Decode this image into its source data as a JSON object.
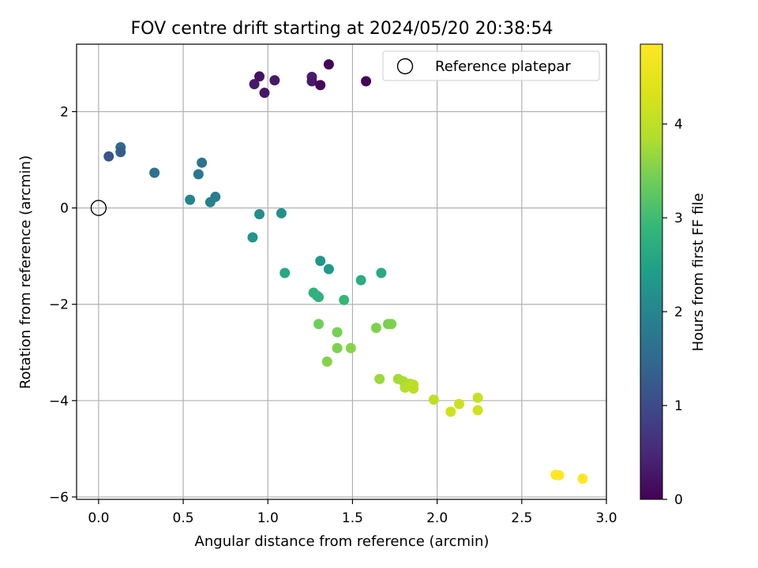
{
  "chart_data": {
    "type": "scatter",
    "title": "FOV centre drift starting at 2024/05/20 20:38:54",
    "xlabel": "Angular distance from reference (arcmin)",
    "ylabel": "Rotation from reference (arcmin)",
    "xlim": [
      -0.13,
      3.0
    ],
    "ylim": [
      -6.05,
      3.4
    ],
    "xticks": [
      0.0,
      0.5,
      1.0,
      1.5,
      2.0,
      2.5,
      3.0
    ],
    "xtick_labels": [
      "0.0",
      "0.5",
      "1.0",
      "1.5",
      "2.0",
      "2.5",
      "3.0"
    ],
    "yticks": [
      -6,
      -4,
      -2,
      0,
      2
    ],
    "ytick_labels": [
      "−6",
      "−4",
      "−2",
      "0",
      "2"
    ],
    "grid": true,
    "legend": {
      "label": "Reference platepar",
      "placement": "top-right"
    },
    "reference_point": {
      "x": 0.0,
      "y": 0.0
    },
    "colorbar": {
      "label": "Hours from first FF file",
      "colormap": "viridis",
      "range": [
        0,
        4.85
      ],
      "ticks": [
        0,
        1,
        2,
        3,
        4
      ],
      "tick_labels": [
        "0",
        "1",
        "2",
        "3",
        "4"
      ]
    },
    "points": [
      {
        "x": 1.36,
        "y": 2.98,
        "h": 0.05
      },
      {
        "x": 0.95,
        "y": 2.73,
        "h": 0.2
      },
      {
        "x": 0.92,
        "y": 2.57,
        "h": 0.3
      },
      {
        "x": 1.04,
        "y": 2.65,
        "h": 0.3
      },
      {
        "x": 0.98,
        "y": 2.39,
        "h": 0.25
      },
      {
        "x": 1.26,
        "y": 2.72,
        "h": 0.35
      },
      {
        "x": 1.26,
        "y": 2.63,
        "h": 0.3
      },
      {
        "x": 1.31,
        "y": 2.55,
        "h": 0.1
      },
      {
        "x": 1.58,
        "y": 2.63,
        "h": 0.05
      },
      {
        "x": 0.13,
        "y": 1.26,
        "h": 1.45
      },
      {
        "x": 0.13,
        "y": 1.16,
        "h": 1.3
      },
      {
        "x": 0.06,
        "y": 1.07,
        "h": 1.15
      },
      {
        "x": 0.33,
        "y": 0.73,
        "h": 1.65
      },
      {
        "x": 0.61,
        "y": 0.94,
        "h": 1.65
      },
      {
        "x": 0.59,
        "y": 0.7,
        "h": 1.75
      },
      {
        "x": 0.69,
        "y": 0.23,
        "h": 1.85
      },
      {
        "x": 0.66,
        "y": 0.12,
        "h": 1.9
      },
      {
        "x": 0.54,
        "y": 0.17,
        "h": 1.95
      },
      {
        "x": 0.95,
        "y": -0.13,
        "h": 2.15
      },
      {
        "x": 1.08,
        "y": -0.11,
        "h": 2.2
      },
      {
        "x": 0.91,
        "y": -0.61,
        "h": 2.25
      },
      {
        "x": 1.31,
        "y": -1.1,
        "h": 2.3
      },
      {
        "x": 1.36,
        "y": -1.27,
        "h": 2.35
      },
      {
        "x": 1.1,
        "y": -1.35,
        "h": 2.6
      },
      {
        "x": 1.67,
        "y": -1.35,
        "h": 2.65
      },
      {
        "x": 1.55,
        "y": -1.5,
        "h": 2.7
      },
      {
        "x": 1.27,
        "y": -1.76,
        "h": 2.8
      },
      {
        "x": 1.29,
        "y": -1.82,
        "h": 2.75
      },
      {
        "x": 1.3,
        "y": -1.85,
        "h": 2.8
      },
      {
        "x": 1.45,
        "y": -1.91,
        "h": 2.9
      },
      {
        "x": 1.3,
        "y": -2.41,
        "h": 3.4
      },
      {
        "x": 1.41,
        "y": -2.58,
        "h": 3.45
      },
      {
        "x": 1.64,
        "y": -2.49,
        "h": 3.5
      },
      {
        "x": 1.71,
        "y": -2.41,
        "h": 3.45
      },
      {
        "x": 1.73,
        "y": -2.41,
        "h": 3.5
      },
      {
        "x": 1.41,
        "y": -2.91,
        "h": 3.5
      },
      {
        "x": 1.49,
        "y": -2.91,
        "h": 3.55
      },
      {
        "x": 1.35,
        "y": -3.19,
        "h": 3.55
      },
      {
        "x": 1.66,
        "y": -3.55,
        "h": 3.7
      },
      {
        "x": 1.77,
        "y": -3.55,
        "h": 3.75
      },
      {
        "x": 1.8,
        "y": -3.6,
        "h": 3.8
      },
      {
        "x": 1.84,
        "y": -3.65,
        "h": 3.85
      },
      {
        "x": 1.81,
        "y": -3.73,
        "h": 3.9
      },
      {
        "x": 1.86,
        "y": -3.67,
        "h": 3.95
      },
      {
        "x": 1.86,
        "y": -3.75,
        "h": 3.95
      },
      {
        "x": 1.98,
        "y": -3.98,
        "h": 4.0
      },
      {
        "x": 2.24,
        "y": -3.94,
        "h": 4.1
      },
      {
        "x": 2.13,
        "y": -4.07,
        "h": 4.15
      },
      {
        "x": 2.08,
        "y": -4.23,
        "h": 4.2
      },
      {
        "x": 2.24,
        "y": -4.2,
        "h": 4.2
      },
      {
        "x": 2.7,
        "y": -5.54,
        "h": 4.85
      },
      {
        "x": 2.72,
        "y": -5.55,
        "h": 4.85
      },
      {
        "x": 2.86,
        "y": -5.62,
        "h": 4.85
      }
    ]
  }
}
